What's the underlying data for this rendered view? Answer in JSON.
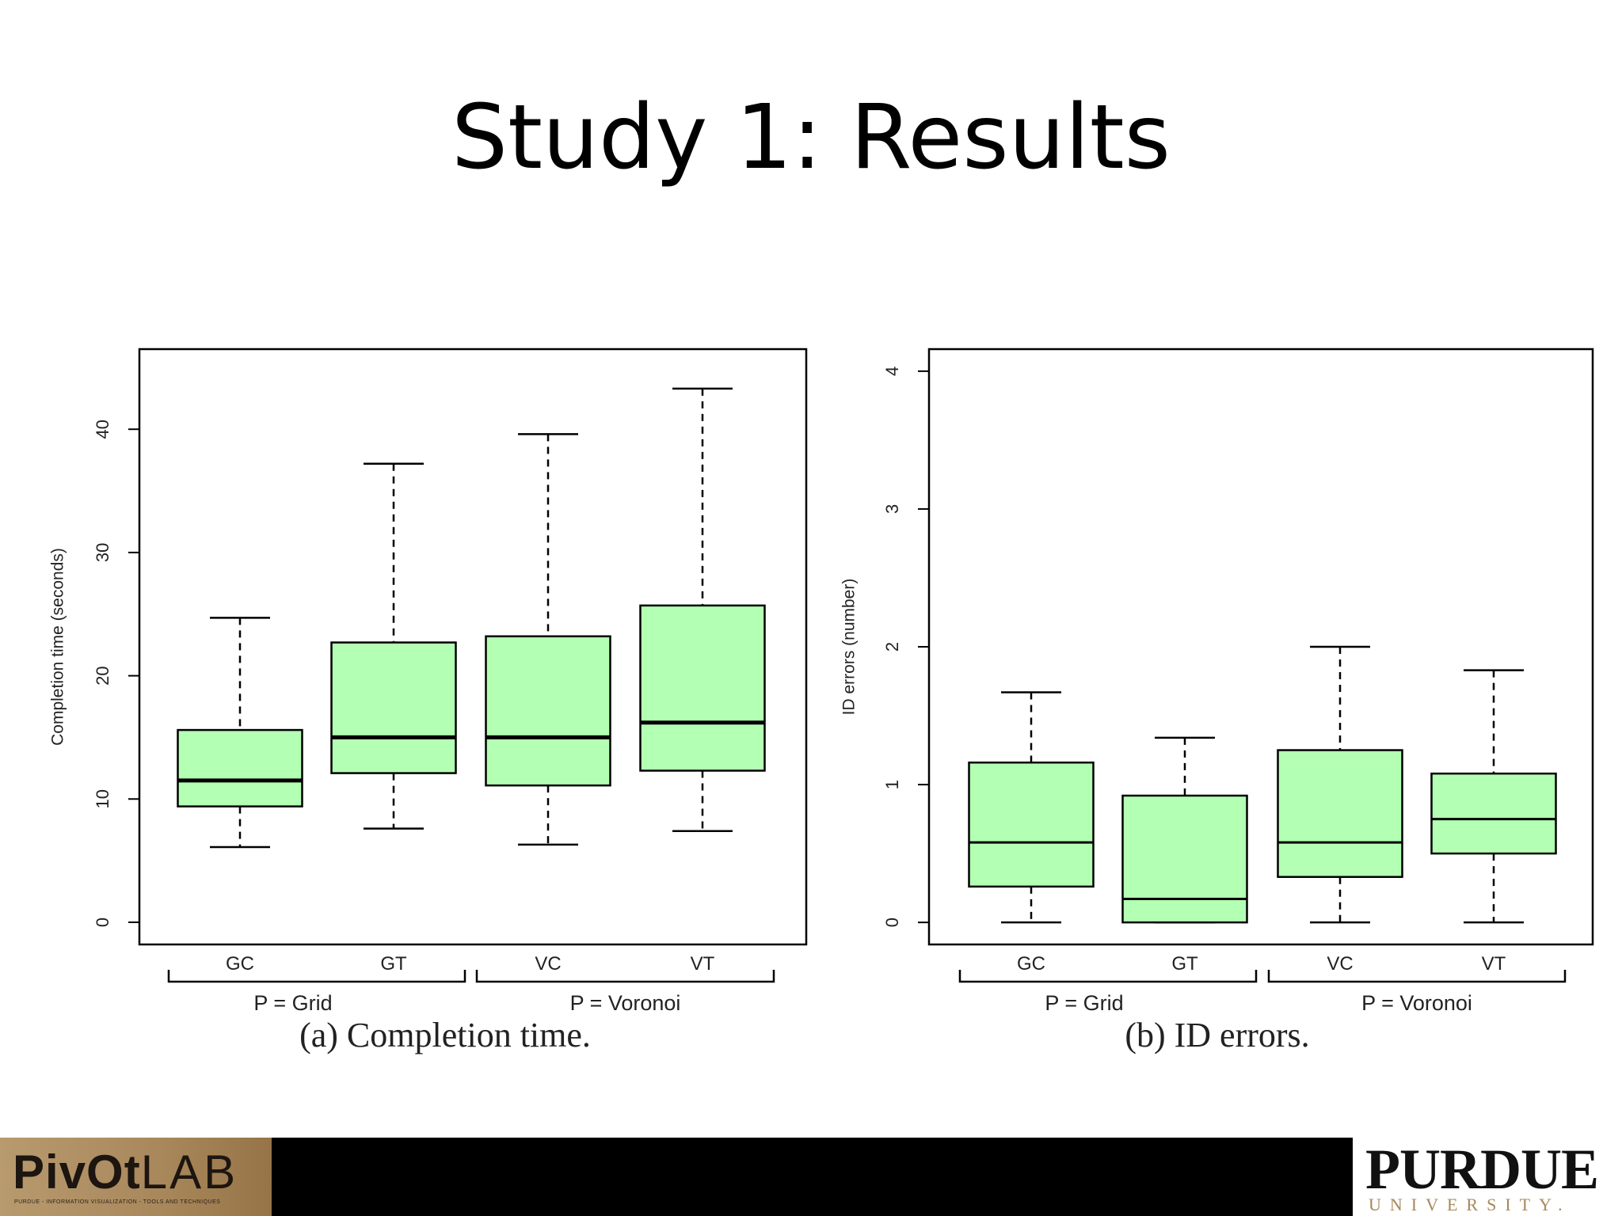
{
  "slide": {
    "title": "Study 1: Results"
  },
  "colors": {
    "box_fill": "#b3ffb3",
    "box_stroke": "#000000",
    "footer": "#000000"
  },
  "footer": {
    "left_logo": {
      "text_bold": "PivOt",
      "text_light": "LAB",
      "tagline": "PURDUE - INFORMATION VISUALIZATION - TOOLS AND TECHNIQUES"
    },
    "right_logo": {
      "name": "PURDUE",
      "subtitle": "UNIVERSITY."
    }
  },
  "chart_data": [
    {
      "type": "boxplot",
      "caption": "(a) Completion time.",
      "ylabel": "Completion time (seconds)",
      "ylim": [
        -1.8,
        46.5
      ],
      "yticks": [
        0,
        10,
        20,
        30,
        40
      ],
      "categories": [
        "GC",
        "GT",
        "VC",
        "VT"
      ],
      "groups": [
        {
          "label": "P = Grid",
          "categories": [
            "GC",
            "GT"
          ]
        },
        {
          "label": "P = Voronoi",
          "categories": [
            "VC",
            "VT"
          ]
        }
      ],
      "thick_median": true,
      "boxes": [
        {
          "category": "GC",
          "min": 6.1,
          "q1": 9.4,
          "median": 11.5,
          "q3": 15.6,
          "max": 24.7
        },
        {
          "category": "GT",
          "min": 7.6,
          "q1": 12.1,
          "median": 15.0,
          "q3": 22.7,
          "max": 37.2
        },
        {
          "category": "VC",
          "min": 6.3,
          "q1": 11.1,
          "median": 15.0,
          "q3": 23.2,
          "max": 39.6
        },
        {
          "category": "VT",
          "min": 7.4,
          "q1": 12.3,
          "median": 16.2,
          "q3": 25.7,
          "max": 43.3
        }
      ]
    },
    {
      "type": "boxplot",
      "caption": "(b) ID errors.",
      "ylabel": "ID errors (number)",
      "ylim": [
        -0.16,
        4.16
      ],
      "yticks": [
        0,
        1,
        2,
        3,
        4
      ],
      "categories": [
        "GC",
        "GT",
        "VC",
        "VT"
      ],
      "groups": [
        {
          "label": "P = Grid",
          "categories": [
            "GC",
            "GT"
          ]
        },
        {
          "label": "P = Voronoi",
          "categories": [
            "VC",
            "VT"
          ]
        }
      ],
      "thick_median": false,
      "boxes": [
        {
          "category": "GC",
          "min": 0.0,
          "q1": 0.26,
          "median": 0.58,
          "q3": 1.16,
          "max": 1.67
        },
        {
          "category": "GT",
          "min": 0.0,
          "q1": 0.0,
          "median": 0.17,
          "q3": 0.92,
          "max": 1.34
        },
        {
          "category": "VC",
          "min": 0.0,
          "q1": 0.33,
          "median": 0.58,
          "q3": 1.25,
          "max": 2.0
        },
        {
          "category": "VT",
          "min": 0.0,
          "q1": 0.5,
          "median": 0.75,
          "q3": 1.08,
          "max": 1.83
        }
      ]
    }
  ]
}
